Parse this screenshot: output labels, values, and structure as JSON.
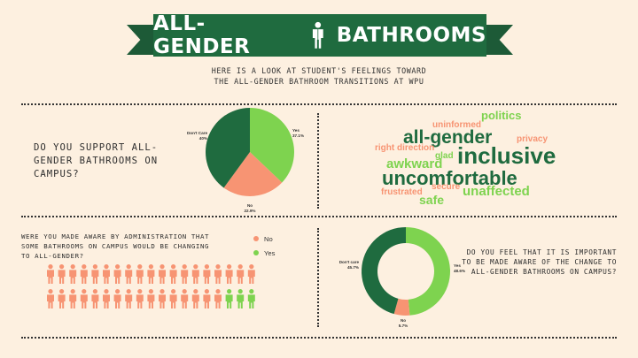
{
  "header": {
    "title_left": "ALL-GENDER",
    "title_right": "BATHROOMS",
    "subtitle_line1": "HERE IS A LOOK AT STUDENT'S FEELINGS TOWARD",
    "subtitle_line2": "THE ALL-GENDER BATHROOM TRANSITIONS AT WPU",
    "icon": "restroom-figure-icon"
  },
  "colors": {
    "dark_green": "#1f6b3f",
    "light_green": "#7ed34f",
    "salmon": "#f79473",
    "background": "#fdf0e0",
    "text": "#333333"
  },
  "questions": {
    "q1": "DO YOU SUPPORT ALL-GENDER BATHROOMS ON CAMPUS?",
    "q2": "WERE YOU MADE AWARE BY ADMINISTRATION THAT SOME BATHROOMS ON CAMPUS WOULD BE CHANGING TO ALL-GENDER?",
    "q3": "DO YOU FEEL THAT IT IS IMPORTANT TO BE MADE AWARE OF THE CHANGE TO ALL-GENDER BATHROOMS ON CAMPUS?"
  },
  "legend": [
    {
      "label": "No",
      "color": "#f79473"
    },
    {
      "label": "Yes",
      "color": "#7ed34f"
    }
  ],
  "chart_data": [
    {
      "type": "pie",
      "question": "DO YOU SUPPORT ALL-GENDER BATHROOMS ON CAMPUS?",
      "slices": [
        {
          "label": "Yes",
          "display": "37.1%",
          "value": 37.1,
          "color": "#7ed34f"
        },
        {
          "label": "No",
          "display": "22.9%",
          "value": 22.9,
          "color": "#f79473"
        },
        {
          "label": "Don't Care",
          "display": "40%",
          "value": 40,
          "color": "#1f6b3f"
        }
      ]
    },
    {
      "type": "pictograph",
      "question": "WERE YOU MADE AWARE BY ADMINISTRATION THAT SOME BATHROOMS ON CAMPUS WOULD BE CHANGING TO ALL-GENDER?",
      "total": 38,
      "rows": 2,
      "per_row": 19,
      "counts": [
        {
          "label": "No",
          "value": 35,
          "color": "#f79473"
        },
        {
          "label": "Yes",
          "value": 3,
          "color": "#7ed34f"
        }
      ]
    },
    {
      "type": "donut",
      "question": "DO YOU FEEL THAT IT IS IMPORTANT TO BE MADE AWARE OF THE CHANGE TO ALL-GENDER BATHROOMS ON CAMPUS?",
      "slices": [
        {
          "label": "Yes",
          "display": "48.6%",
          "value": 48.6,
          "color": "#7ed34f"
        },
        {
          "label": "No",
          "display": "5.7%",
          "value": 5.7,
          "color": "#f79473"
        },
        {
          "label": "Don't care",
          "display": "45.7%",
          "value": 45.7,
          "color": "#1f6b3f"
        }
      ]
    },
    {
      "type": "wordcloud",
      "words": [
        {
          "text": "politics",
          "color": "#7ed34f"
        },
        {
          "text": "uninformed",
          "color": "#f79473"
        },
        {
          "text": "all-gender",
          "color": "#1f6b3f"
        },
        {
          "text": "privacy",
          "color": "#f79473"
        },
        {
          "text": "right direction",
          "color": "#f79473"
        },
        {
          "text": "glad",
          "color": "#7ed34f"
        },
        {
          "text": "inclusive",
          "color": "#1f6b3f"
        },
        {
          "text": "awkward",
          "color": "#7ed34f"
        },
        {
          "text": "uncomfortable",
          "color": "#1f6b3f"
        },
        {
          "text": "frustrated",
          "color": "#f79473"
        },
        {
          "text": "secure",
          "color": "#f79473"
        },
        {
          "text": "unaffected",
          "color": "#7ed34f"
        },
        {
          "text": "safe",
          "color": "#7ed34f"
        }
      ]
    }
  ]
}
